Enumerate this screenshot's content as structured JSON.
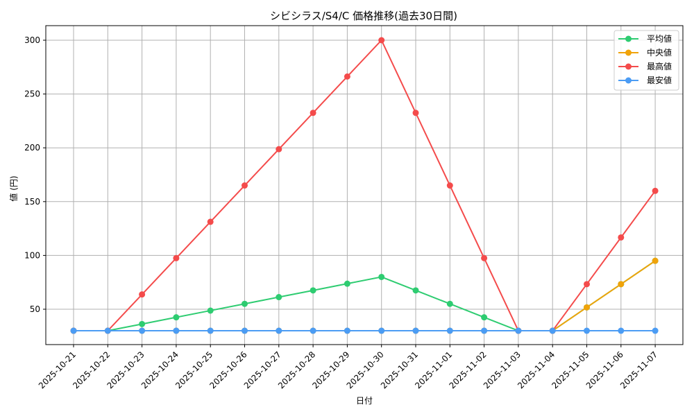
{
  "chart_data": {
    "type": "line",
    "title": "シビシラス/S4/C 価格推移(過去30日間)",
    "xlabel": "日付",
    "ylabel": "値 (円)",
    "ylim": [
      17,
      314
    ],
    "yticks": [
      50,
      100,
      150,
      200,
      250,
      300
    ],
    "grid": true,
    "legend_position": "upper right",
    "x": [
      "2025-10-21",
      "2025-10-22",
      "2025-10-23",
      "2025-10-24",
      "2025-10-25",
      "2025-10-26",
      "2025-10-27",
      "2025-10-28",
      "2025-10-29",
      "2025-10-30",
      "2025-10-31",
      "2025-11-01",
      "2025-11-02",
      "2025-11-03",
      "2025-11-04",
      "2025-11-05",
      "2025-11-06",
      "2025-11-07"
    ],
    "series": [
      {
        "name": "平均値",
        "color": "#2ecc71",
        "values": [
          30,
          30,
          36.25,
          42.5,
          48.75,
          55,
          61.25,
          67.5,
          73.75,
          80,
          67.5,
          55,
          42.5,
          30,
          30,
          51.7,
          73.3,
          95
        ]
      },
      {
        "name": "中央値",
        "color": "#f0a30a",
        "values": [
          30,
          30,
          30,
          30,
          30,
          30,
          30,
          30,
          30,
          30,
          30,
          30,
          30,
          30,
          30,
          51.7,
          73.3,
          95
        ]
      },
      {
        "name": "最高値",
        "color": "#f44b4b",
        "values": [
          30,
          30,
          63.75,
          97.5,
          131.25,
          165,
          198.75,
          232.5,
          266.25,
          300,
          232.5,
          165,
          97.5,
          30,
          30,
          73.3,
          116.7,
          160
        ]
      },
      {
        "name": "最安値",
        "color": "#4b9cf4",
        "values": [
          30,
          30,
          30,
          30,
          30,
          30,
          30,
          30,
          30,
          30,
          30,
          30,
          30,
          30,
          30,
          30,
          30,
          30
        ]
      }
    ]
  }
}
